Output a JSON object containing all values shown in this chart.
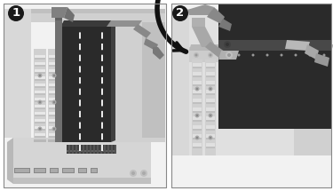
{
  "fig_width": 3.75,
  "fig_height": 2.15,
  "dpi": 100,
  "bg_color": "#ffffff",
  "panel1": {
    "bg": "#f2f2f2",
    "label": "1",
    "board_top": "#c8c8c8",
    "board_side": "#b0b0b0",
    "board_front": "#d8d8d8",
    "chassis_back": "#c0c0c0",
    "chassis_right": "#b8b8b8",
    "slot_strip_light": "#e0e0e0",
    "slot_strip_dark": "#c0c0c0",
    "card_face": "#2a2a2a",
    "card_top": "#444444",
    "card_bracket": "#888888",
    "card_bracket_dark": "#555555",
    "connector_dark": "#404040",
    "connector_light": "#606060",
    "crossbar_open": "#909090",
    "hook_color": "#808080",
    "dashed_color": "#ffffff",
    "screw_color": "#888888",
    "label_bg": "#1a1a1a"
  },
  "panel2": {
    "bg": "#f2f2f2",
    "label": "2",
    "board_color": "#c8c8c8",
    "chassis_bg": "#d8d8d8",
    "chassis_top": "#c0c0c0",
    "chassis_rail": "#b0b0b0",
    "slot_light": "#e0e0e0",
    "slot_dark": "#c0c0c0",
    "card_dark": "#2a2a2a",
    "card_side": "#383838",
    "card_top_edge": "#505050",
    "crossbar_light": "#b0b0b0",
    "crossbar_mid": "#909090",
    "crossbar_dark": "#606060",
    "arrow_color": "#111111",
    "screw_color": "#888888",
    "label_bg": "#1a1a1a"
  }
}
